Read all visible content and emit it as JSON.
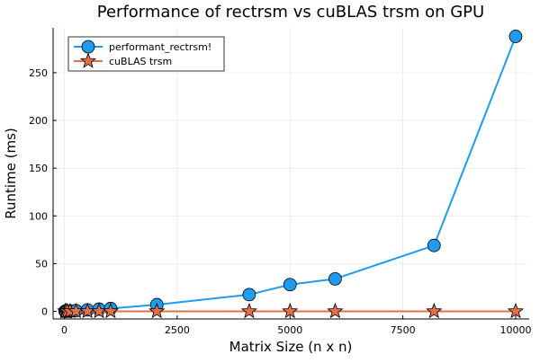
{
  "chart_data": {
    "type": "line",
    "title": "Performance of rectrsm vs cuBLAS trsm on GPU",
    "xlabel": "Matrix Size (n x n)",
    "ylabel": "Runtime (ms)",
    "xlim": [
      -250,
      10300
    ],
    "ylim": [
      -8,
      297
    ],
    "xticks": [
      0,
      2500,
      5000,
      7500,
      10000
    ],
    "yticks": [
      0,
      50,
      100,
      150,
      200,
      250
    ],
    "grid": true,
    "legend_position": "top-left",
    "series": [
      {
        "name": "performant_rectrsm!",
        "color": "#1f9bf0",
        "marker": "circle",
        "x": [
          16,
          32,
          64,
          128,
          256,
          512,
          768,
          1024,
          2048,
          4096,
          5000,
          6000,
          8192,
          10000
        ],
        "y": [
          0.1,
          0.1,
          0.2,
          0.4,
          0.8,
          1.5,
          2.3,
          3.0,
          7.0,
          17.5,
          28.0,
          34.0,
          69.0,
          288.0
        ]
      },
      {
        "name": "cuBLAS trsm",
        "color": "#e26f46",
        "marker": "star",
        "x": [
          16,
          32,
          64,
          128,
          256,
          512,
          768,
          1024,
          2048,
          4096,
          5000,
          6000,
          8192,
          10000
        ],
        "y": [
          0.05,
          0.05,
          0.05,
          0.05,
          0.05,
          0.05,
          0.05,
          0.05,
          0.05,
          0.05,
          0.05,
          0.05,
          0.05,
          0.05
        ]
      }
    ]
  }
}
